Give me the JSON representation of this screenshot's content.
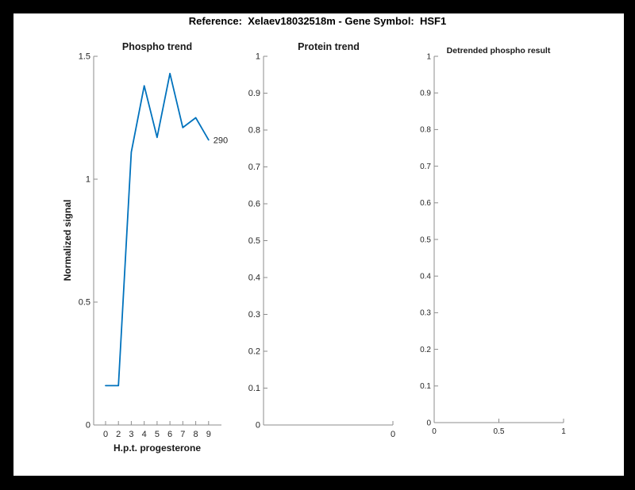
{
  "header": {
    "title": "Reference:  Xelaev18032518m - Gene Symbol:  HSF1"
  },
  "colors": {
    "line": "#0072bd",
    "axis": "#8c8c8c",
    "tick_text": "#262626",
    "frame": "#000000",
    "canvas": "#ffffff"
  },
  "chart_data": [
    {
      "type": "line",
      "title": "Phospho trend",
      "xlabel": "H.p.t. progesterone",
      "ylabel": "Normalized signal",
      "categories": [
        "0",
        "2",
        "3",
        "4",
        "5",
        "6",
        "7",
        "8",
        "9"
      ],
      "values": [
        0.16,
        0.16,
        1.11,
        1.38,
        1.17,
        1.43,
        1.21,
        1.25,
        1.16
      ],
      "ylim": [
        0,
        1.5
      ],
      "y_tick_labels": [
        "0",
        "0.5",
        "1",
        "1.5"
      ],
      "x_tick_labels": [
        "0",
        "2",
        "3",
        "4",
        "5",
        "6",
        "7",
        "8",
        "9"
      ],
      "end_label": "290",
      "grid": false,
      "legend": null
    },
    {
      "type": "line",
      "title": "Protein trend",
      "xlabel": "",
      "ylabel": "",
      "categories": [],
      "values": [],
      "ylim": [
        0,
        1
      ],
      "y_tick_labels": [
        "0",
        "0.1",
        "0.2",
        "0.3",
        "0.4",
        "0.5",
        "0.6",
        "0.7",
        "0.8",
        "0.9",
        "1"
      ],
      "x_tick_labels": [
        "0"
      ],
      "grid": false,
      "legend": null
    },
    {
      "type": "line",
      "title": "Detrended phospho result",
      "xlabel": "",
      "ylabel": "",
      "categories": [],
      "values": [],
      "ylim": [
        0,
        1
      ],
      "xlim": [
        0,
        1
      ],
      "y_tick_labels": [
        "0",
        "0.1",
        "0.2",
        "0.3",
        "0.4",
        "0.5",
        "0.6",
        "0.7",
        "0.8",
        "0.9",
        "1"
      ],
      "x_tick_labels": [
        "0",
        "0.5",
        "1"
      ],
      "grid": false,
      "legend": null
    }
  ]
}
